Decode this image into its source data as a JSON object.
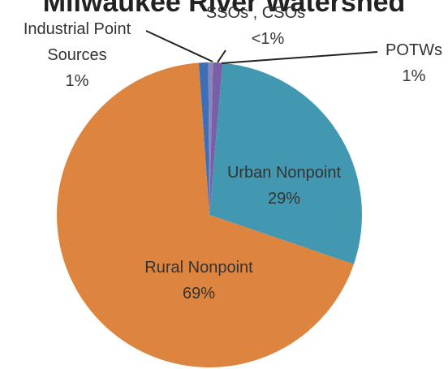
{
  "chart_data": {
    "type": "pie",
    "title": "Milwaukee River Watershed",
    "categories": [
      "Industrial Point Sources",
      "SSOs , CSOs",
      "POTWs",
      "Urban Nonpoint",
      "Rural Nonpoint"
    ],
    "values": [
      1,
      0.5,
      1,
      29,
      69
    ],
    "value_labels": [
      "1%",
      "<1%",
      "1%",
      "29%",
      "69%"
    ],
    "colors": [
      "#3c6fb8",
      "#8a86b8",
      "#7a5ea6",
      "#4198b0",
      "#dd843f"
    ]
  }
}
